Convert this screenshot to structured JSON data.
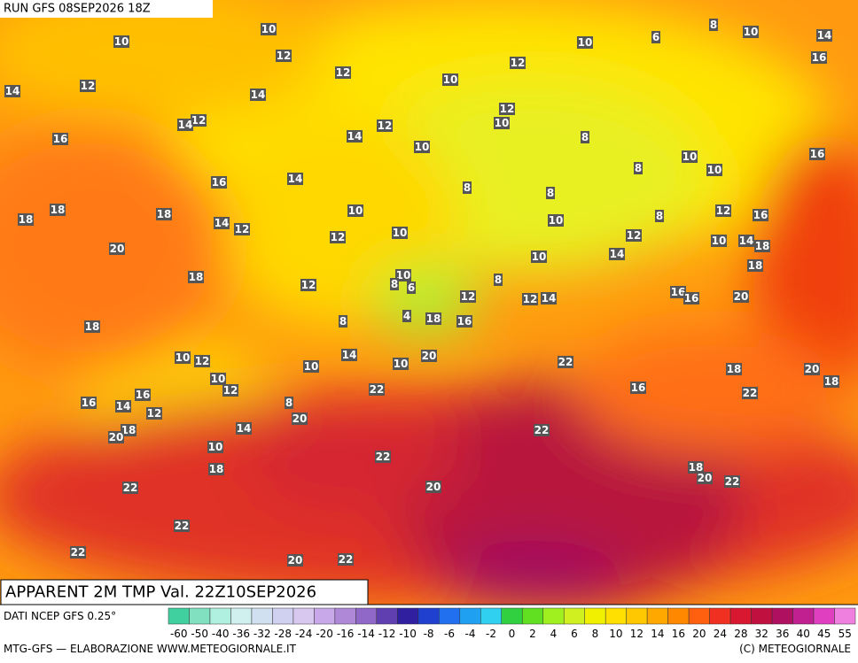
{
  "header": {
    "run": "RUN GFS 08SEP2026 18Z"
  },
  "title": "APPARENT 2M TMP Val. 22Z10SEP2026",
  "source": "DATI NCEP GFS 0.25°",
  "footer_left": "MTG-GFS — ELABORAZIONE WWW.METEOGIORNALE.IT",
  "footer_right": "(C) METEOGIORNALE",
  "scale": {
    "labels": [
      -60,
      -50,
      -40,
      -36,
      -32,
      -28,
      -24,
      -20,
      -16,
      -14,
      -12,
      -10,
      -8,
      -6,
      -4,
      -2,
      0,
      2,
      4,
      6,
      8,
      10,
      12,
      14,
      16,
      20,
      24,
      28,
      32,
      36,
      40,
      45,
      55
    ],
    "colors": [
      "#40d0a0",
      "#80e0c0",
      "#b0f0e0",
      "#d0f0f0",
      "#d0e0f0",
      "#d0d0f0",
      "#d8c8f0",
      "#c8a8e8",
      "#b088d8",
      "#9068c8",
      "#6040b0",
      "#3020a0",
      "#2040d0",
      "#2070f0",
      "#20a0f0",
      "#30d0f0",
      "#30d040",
      "#60e020",
      "#a0f020",
      "#d0f020",
      "#f0f000",
      "#ffe000",
      "#ffc800",
      "#ffa800",
      "#ff8800",
      "#ff6010",
      "#f03020",
      "#d81830",
      "#c01040",
      "#b01060",
      "#c02090",
      "#e040c0",
      "#f080e0"
    ]
  },
  "map_labels": [
    10,
    10,
    12,
    12,
    12,
    14,
    14,
    12,
    14,
    16,
    14,
    12,
    10,
    10,
    12,
    10,
    12,
    10,
    6,
    8,
    10,
    14,
    16,
    8,
    8,
    10,
    10,
    16,
    14,
    16,
    8,
    8,
    10,
    10,
    12,
    10,
    12,
    8,
    12,
    16,
    18,
    18,
    18,
    14,
    12,
    20,
    18,
    12,
    10,
    14,
    10,
    14,
    18,
    18,
    10,
    6,
    8,
    12,
    8,
    12,
    14,
    16,
    16,
    20,
    8,
    4,
    18,
    16,
    18,
    10,
    12,
    10,
    14,
    10,
    20,
    22,
    10,
    12,
    16,
    14,
    12,
    16,
    8,
    20,
    22,
    16,
    18,
    22,
    20,
    18,
    18,
    20,
    14,
    22,
    10,
    18,
    22,
    20,
    18,
    20,
    22,
    22,
    22,
    22,
    20,
    22
  ]
}
